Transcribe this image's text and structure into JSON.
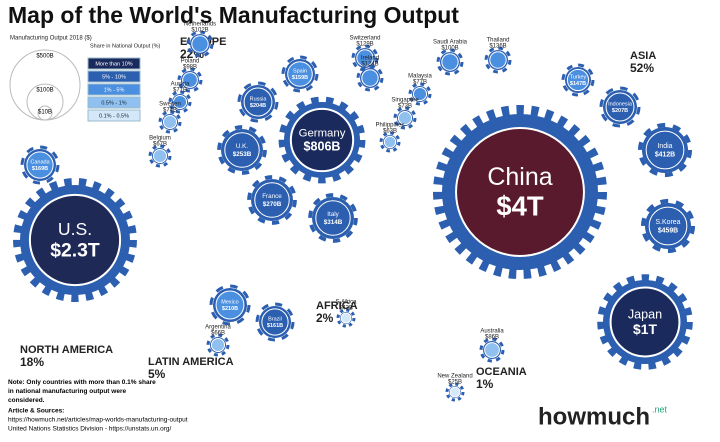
{
  "title": "Map of the World's Manufacturing Output",
  "legend": {
    "size_title": "Manufacturing Output 2018 ($)",
    "sizes": [
      "$500B",
      "$100B",
      "$10B"
    ],
    "share_title": "Share in National Output (%)",
    "shares": [
      {
        "label": "More than 10%",
        "color": "#1b2a5c"
      },
      {
        "label": "5% - 10%",
        "color": "#2c5fb0"
      },
      {
        "label": "1% - 5%",
        "color": "#4b8fe0"
      },
      {
        "label": "0.5% - 1%",
        "color": "#8fc0f0"
      },
      {
        "label": "0.1% - 0.5%",
        "color": "#d4e8fa"
      }
    ]
  },
  "regions": [
    {
      "name": "EUROPE",
      "share": "22%"
    },
    {
      "name": "ASIA",
      "share": "52%"
    },
    {
      "name": "NORTH AMERICA",
      "share": "18%"
    },
    {
      "name": "LATIN AMERICA",
      "share": "5%"
    },
    {
      "name": "AFRICA",
      "share": "2%"
    },
    {
      "name": "OCEANIA",
      "share": "1%"
    }
  ],
  "countries": [
    {
      "name": "China",
      "value": "$4T",
      "color": "#5a1a2e"
    },
    {
      "name": "U.S.",
      "value": "$2.3T",
      "color": "#1e2a55"
    },
    {
      "name": "Japan",
      "value": "$1T",
      "color": "#1b2a5c"
    },
    {
      "name": "Germany",
      "value": "$806B",
      "color": "#1b2a5c"
    },
    {
      "name": "S.Korea",
      "value": "$459B",
      "color": "#2c5fb0"
    },
    {
      "name": "India",
      "value": "$412B",
      "color": "#2c5fb0"
    },
    {
      "name": "Italy",
      "value": "$314B",
      "color": "#2c5fb0"
    },
    {
      "name": "France",
      "value": "$270B",
      "color": "#2c5fb0"
    },
    {
      "name": "U.K.",
      "value": "$253B",
      "color": "#2c5fb0"
    },
    {
      "name": "Mexico",
      "value": "$210B",
      "color": "#4b8fe0"
    },
    {
      "name": "Indonesia",
      "value": "$207B",
      "color": "#2c5fb0"
    },
    {
      "name": "Russia",
      "value": "$204B",
      "color": "#2c5fb0"
    },
    {
      "name": "Canada",
      "value": "$169B",
      "color": "#4b8fe0"
    },
    {
      "name": "Brazil",
      "value": "$161B",
      "color": "#2c5fb0"
    },
    {
      "name": "Spain",
      "value": "$159B",
      "color": "#4b8fe0"
    },
    {
      "name": "Turkey",
      "value": "$147B",
      "color": "#4b8fe0"
    },
    {
      "name": "Thailand",
      "value": "$136B",
      "color": "#4b8fe0"
    },
    {
      "name": "Switzerland",
      "value": "$129B",
      "color": "#4b8fe0"
    },
    {
      "name": "Ireland",
      "value": "$124B",
      "color": "#4b8fe0"
    },
    {
      "name": "Netherlands",
      "value": "$102B",
      "color": "#4b8fe0"
    },
    {
      "name": "Saudi Arabia",
      "value": "$100B",
      "color": "#4b8fe0"
    },
    {
      "name": "Poland",
      "value": "$98B",
      "color": "#4b8fe0"
    },
    {
      "name": "Australia",
      "value": "$86B",
      "color": "#8fc0f0"
    },
    {
      "name": "Austria",
      "value": "$77B",
      "color": "#4b8fe0"
    },
    {
      "name": "Malaysia",
      "value": "$77B",
      "color": "#4b8fe0"
    },
    {
      "name": "Sweden",
      "value": "$74B",
      "color": "#8fc0f0"
    },
    {
      "name": "Singapore",
      "value": "$73B",
      "color": "#8fc0f0"
    },
    {
      "name": "Belgium",
      "value": "$67B",
      "color": "#8fc0f0"
    },
    {
      "name": "Argentina",
      "value": "$66B",
      "color": "#8fc0f0"
    },
    {
      "name": "Philippines",
      "value": "$63B",
      "color": "#8fc0f0"
    },
    {
      "name": "S.Africa",
      "value": "$43B",
      "color": "#d4e8fa"
    },
    {
      "name": "New Zealand",
      "value": "$25B",
      "color": "#d4e8fa"
    }
  ],
  "note": "Note: Only countries with more than 0.1% share in national manufacturing output were considered.",
  "sources_title": "Article & Sources:",
  "sources": [
    "https://howmuch.net/articles/map-worlds-manufacturing-output",
    "United Nations Statistics Division - https://unstats.un.org/"
  ],
  "logo": {
    "name": "howmuch",
    "suffix": ".net"
  }
}
